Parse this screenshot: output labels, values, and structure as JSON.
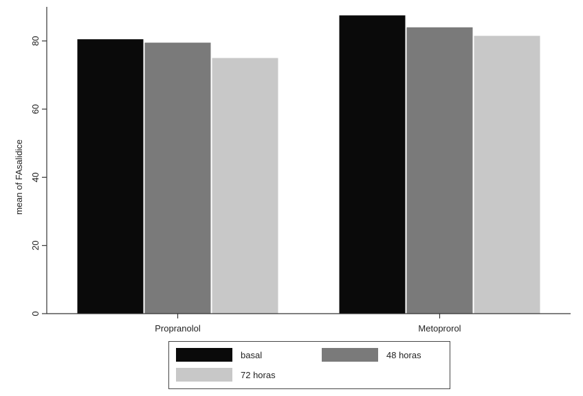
{
  "chart_data": {
    "type": "bar",
    "title": "",
    "xlabel": "",
    "ylabel": "mean of FAsalidice",
    "categories": [
      "Propranolol",
      "Metoprorol"
    ],
    "series": [
      {
        "name": "basal",
        "color": "#0a0a0a",
        "values": [
          80.5,
          87.5
        ]
      },
      {
        "name": "48 horas",
        "color": "#7a7a7a",
        "values": [
          79.5,
          84
        ]
      },
      {
        "name": "72 horas",
        "color": "#c8c8c8",
        "values": [
          75,
          81.5
        ]
      }
    ],
    "ylim": [
      0,
      90
    ],
    "yticks": [
      "0",
      "20",
      "40",
      "60",
      "80"
    ],
    "legend_position": "bottom",
    "grid": false
  }
}
